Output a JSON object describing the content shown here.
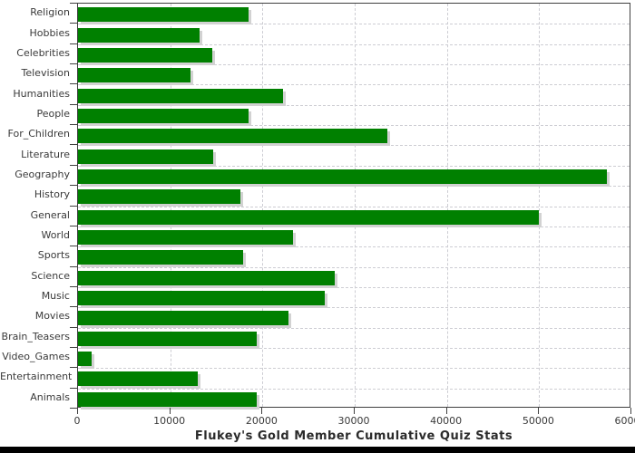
{
  "chart_data": {
    "type": "bar",
    "orientation": "horizontal",
    "title": "Flukey's Gold Member Cumulative Quiz Stats",
    "categories": [
      "Religion",
      "Hobbies",
      "Celebrities",
      "Television",
      "Humanities",
      "People",
      "For_Children",
      "Literature",
      "Geography",
      "History",
      "General",
      "World",
      "Sports",
      "Science",
      "Music",
      "Movies",
      "Brain_Teasers",
      "Video_Games",
      "Entertainment",
      "Animals"
    ],
    "values": [
      18500,
      13200,
      14600,
      12200,
      22200,
      18500,
      33500,
      14700,
      57300,
      17600,
      50000,
      23300,
      17900,
      27800,
      26800,
      22800,
      19400,
      1500,
      13000,
      19400
    ],
    "xlabel": "",
    "ylabel": "",
    "xlim": [
      0,
      60000
    ],
    "x_ticks": [
      0,
      10000,
      20000,
      30000,
      40000,
      50000,
      60000
    ],
    "grid": "dashed, vertical at every x tick and horizontal at every category boundary",
    "legend": "none",
    "colors": {
      "bar": "#008000",
      "bar_shadow": "#d2d2d2",
      "gridline": "#cdcdd3",
      "axis": "#404040",
      "tick_label": "#3a3a3a",
      "title": "#2b2b2b",
      "background": "#ffffff",
      "bottom_strip": "#000000"
    }
  }
}
